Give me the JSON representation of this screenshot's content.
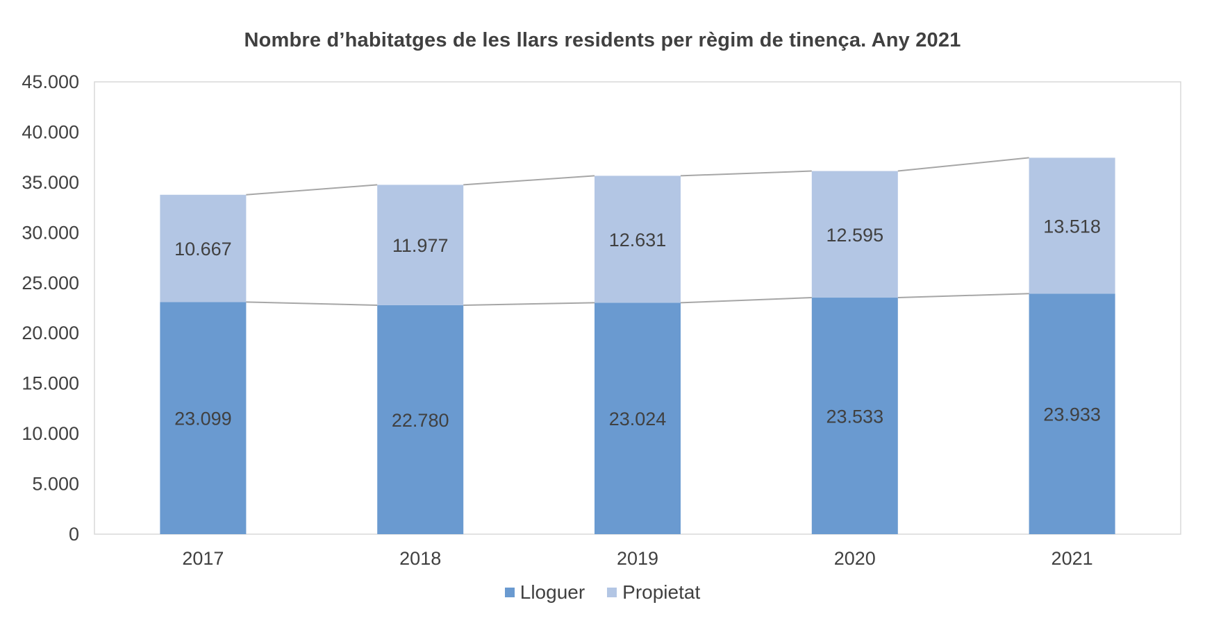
{
  "chart_data": {
    "type": "bar",
    "stacked": true,
    "title": "Nombre d’habitatges de les llars residents per règim de tinença. Any 2021",
    "categories": [
      "2017",
      "2018",
      "2019",
      "2020",
      "2021"
    ],
    "series": [
      {
        "name": "Lloguer",
        "color": "#6a9ad0",
        "values": [
          23099,
          22780,
          23024,
          23533,
          23933
        ],
        "labels": [
          "23.099",
          "22.780",
          "23.024",
          "23.533",
          "23.933"
        ]
      },
      {
        "name": "Propietat",
        "color": "#b3c6e4",
        "values": [
          10667,
          11977,
          12631,
          12595,
          13518
        ],
        "labels": [
          "10.667",
          "11.977",
          "12.631",
          "12.595",
          "13.518"
        ]
      }
    ],
    "ylim": [
      0,
      45000
    ],
    "yticks": [
      0,
      5000,
      10000,
      15000,
      20000,
      25000,
      30000,
      35000,
      40000,
      45000
    ],
    "ytick_labels": [
      "0",
      "5.000",
      "10.000",
      "15.000",
      "20.000",
      "25.000",
      "30.000",
      "35.000",
      "40.000",
      "45.000"
    ],
    "series_lines": true,
    "grid": false,
    "legend": "bottom",
    "frame_color": "#d9d9d9",
    "line_color": "#a6a6a6",
    "text_color": "#404040"
  }
}
